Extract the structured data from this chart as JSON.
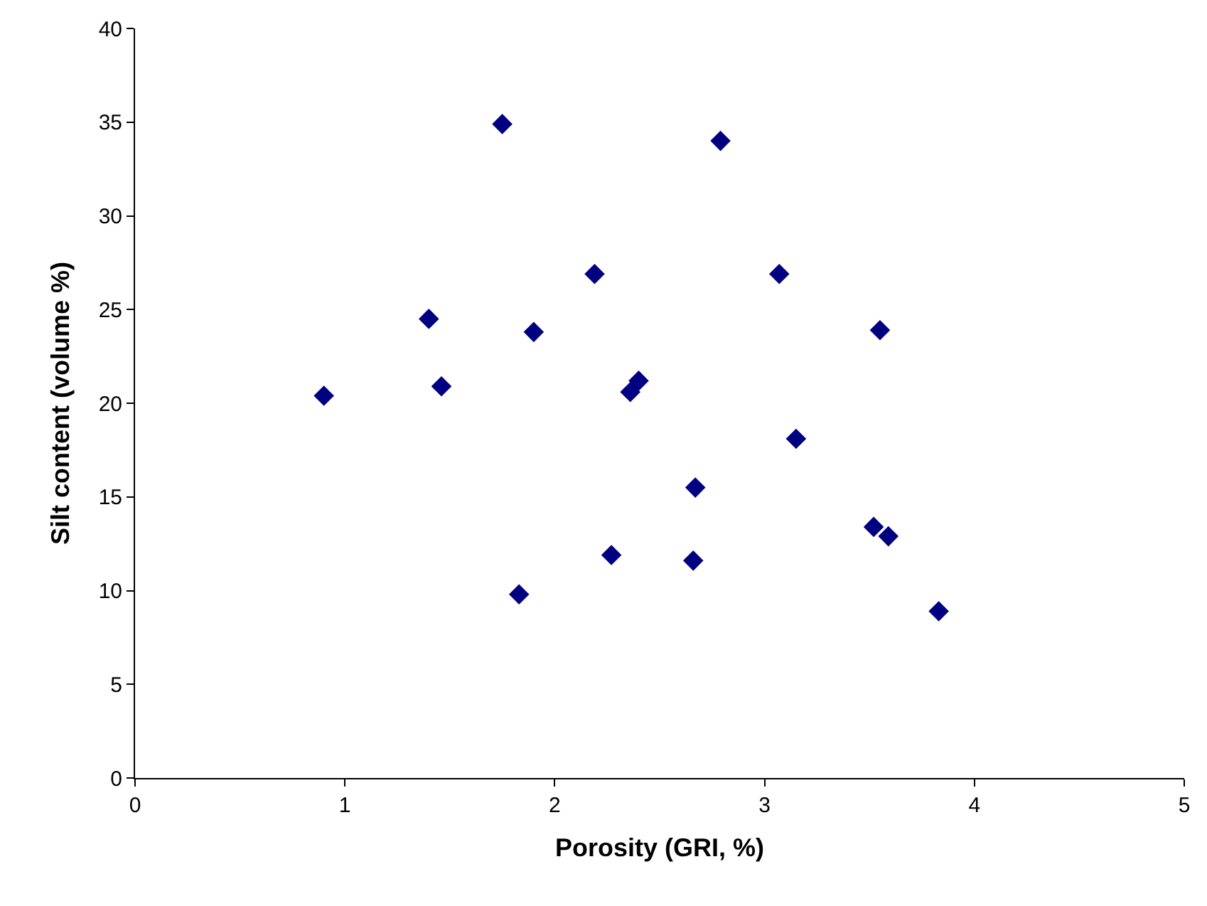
{
  "chart_data": {
    "type": "scatter",
    "xlabel": "Porosity (GRI, %)",
    "ylabel": "Silt content (volume %)",
    "x": [
      0.9,
      1.4,
      1.46,
      1.75,
      1.83,
      1.9,
      2.19,
      2.27,
      2.36,
      2.4,
      2.66,
      2.67,
      2.79,
      3.07,
      3.15,
      3.52,
      3.55,
      3.59,
      3.83
    ],
    "series": [
      {
        "color": "#000080",
        "values": [
          20.4,
          24.5,
          20.9,
          34.9,
          9.8,
          23.8,
          26.9,
          11.9,
          20.6,
          21.2,
          11.6,
          15.5,
          34.0,
          26.9,
          18.1,
          13.4,
          23.9,
          12.9,
          8.9
        ]
      }
    ],
    "xlim": [
      0,
      5
    ],
    "xticks": [
      0,
      1,
      2,
      3,
      4,
      5
    ],
    "ylim": [
      0,
      40
    ],
    "yticks": [
      0,
      5,
      10,
      15,
      20,
      25,
      30,
      35,
      40
    ],
    "marker": "diamond",
    "grid": false,
    "legend": false
  }
}
